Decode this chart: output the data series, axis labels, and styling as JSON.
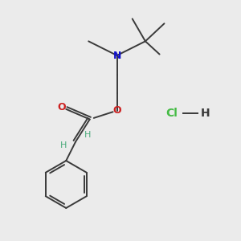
{
  "background_color": "#ebebeb",
  "bond_color": "#3a3a3a",
  "N_color": "#1010cc",
  "O_color": "#cc2020",
  "Cl_color": "#44bb44",
  "H_color": "#4aaa7a",
  "figsize": [
    3.0,
    3.0
  ],
  "dpi": 100,
  "xlim": [
    0,
    10
  ],
  "ylim": [
    0,
    10
  ]
}
